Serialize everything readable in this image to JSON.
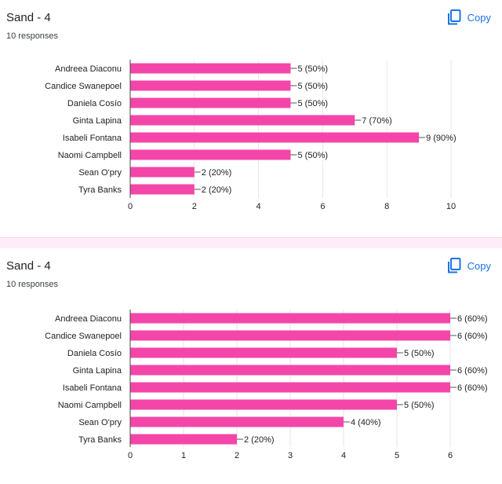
{
  "colors": {
    "bar": "#f446a9",
    "grid": "#e6e6e6",
    "axis": "#444444",
    "link": "#1a73e8"
  },
  "cards": [
    {
      "title": "Sand - 4",
      "responses": "10 responses",
      "copy_label": "Copy",
      "copy_icon": "copy-icon",
      "chart_data": {
        "type": "bar",
        "orientation": "horizontal",
        "categories": [
          "Andreea Diaconu",
          "Candice Swanepoel",
          "Daniela Cosío",
          "Ginta Lapina",
          "Isabeli Fontana",
          "Naomi Campbell",
          "Sean O'pry",
          "Tyra Banks"
        ],
        "values": [
          5,
          5,
          5,
          7,
          9,
          5,
          2,
          2
        ],
        "labels": [
          "5 (50%)",
          "5 (50%)",
          "5 (50%)",
          "7 (70%)",
          "9 (90%)",
          "5 (50%)",
          "2 (20%)",
          "2 (20%)"
        ],
        "xlim": [
          0,
          10
        ],
        "xticks": [
          0,
          2,
          4,
          6,
          8,
          10
        ],
        "grid": true
      }
    },
    {
      "title": "Sand - 4",
      "responses": "10 responses",
      "copy_label": "Copy",
      "copy_icon": "copy-icon",
      "chart_data": {
        "type": "bar",
        "orientation": "horizontal",
        "categories": [
          "Andreea Diaconu",
          "Candice Swanepoel",
          "Daniela Cosío",
          "Ginta Lapina",
          "Isabeli Fontana",
          "Naomi Campbell",
          "Sean O'pry",
          "Tyra Banks"
        ],
        "values": [
          6,
          6,
          5,
          6,
          6,
          5,
          4,
          2
        ],
        "labels": [
          "6 (60%)",
          "6 (60%)",
          "5 (50%)",
          "6 (60%)",
          "6 (60%)",
          "5 (50%)",
          "4 (40%)",
          "2 (20%)"
        ],
        "xlim": [
          0,
          6
        ],
        "xticks": [
          0,
          1,
          2,
          3,
          4,
          5,
          6
        ],
        "grid": true
      }
    }
  ]
}
